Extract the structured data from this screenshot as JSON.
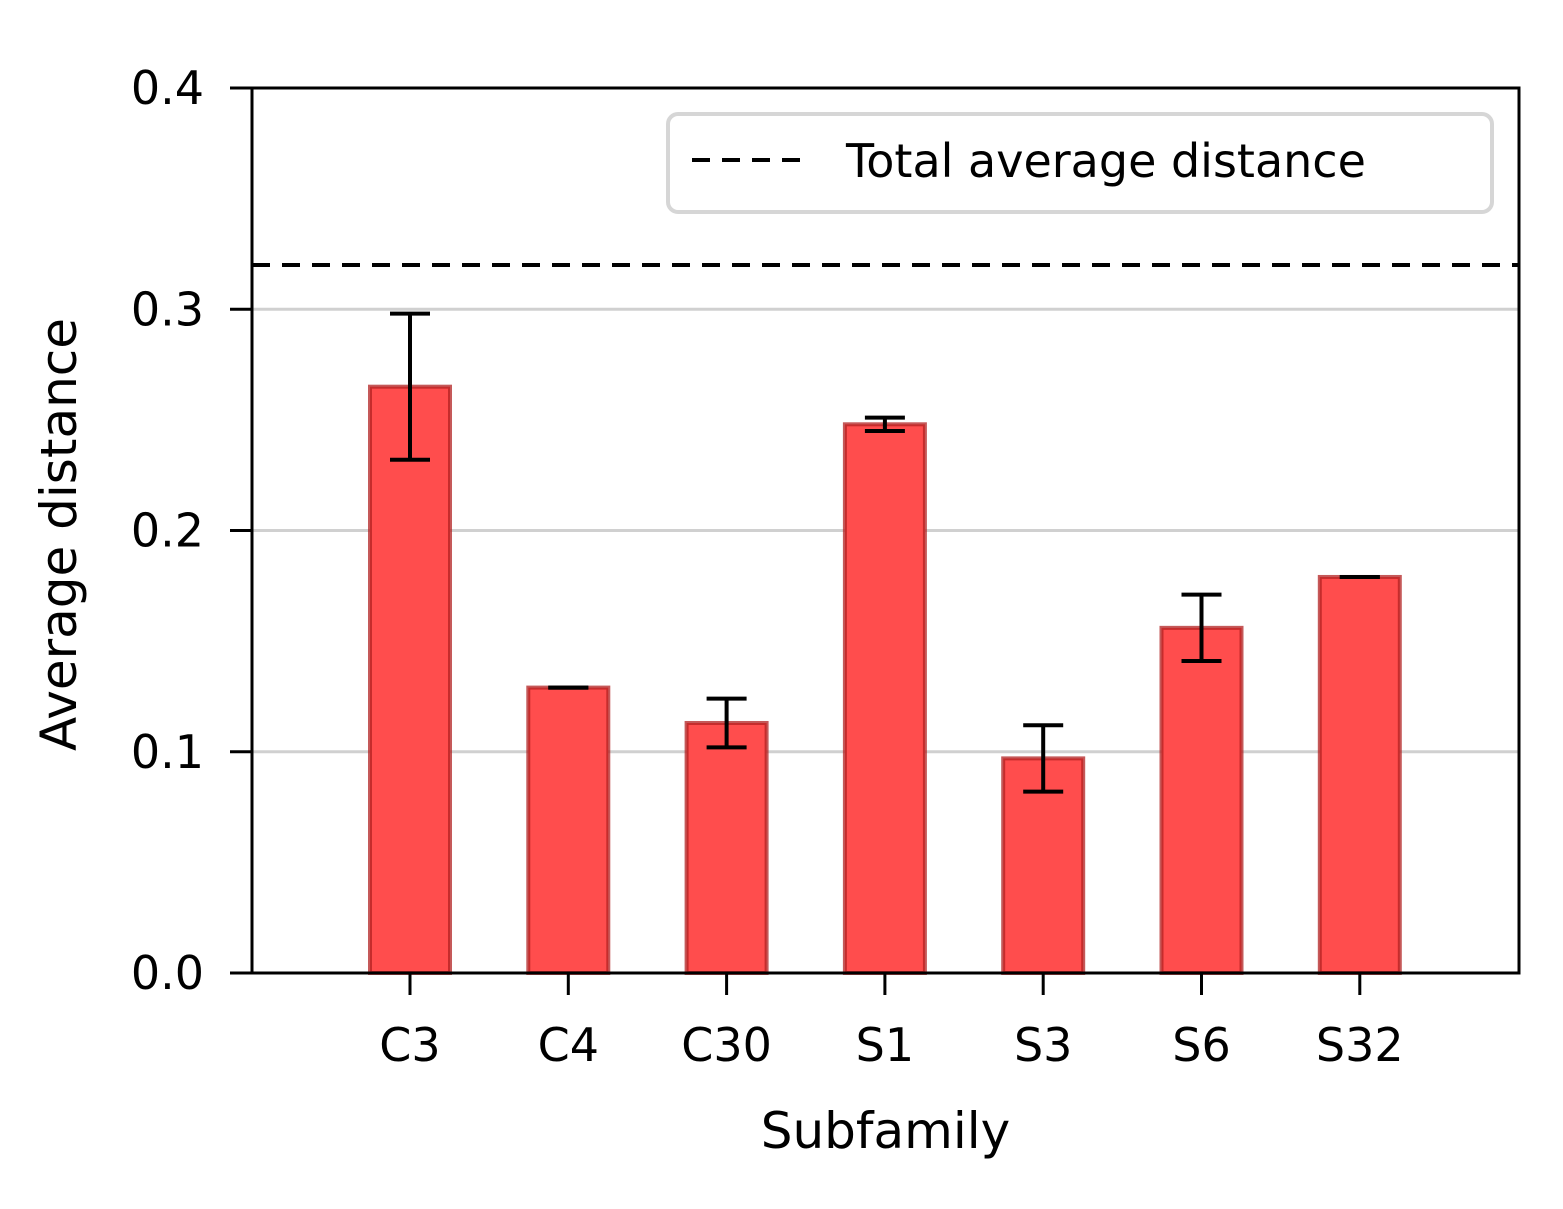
{
  "chart_data": {
    "type": "bar",
    "title": "",
    "xlabel": "Subfamily",
    "ylabel": "Average distance",
    "ylim": [
      0,
      0.4
    ],
    "yticks": [
      "0.0",
      "0.1",
      "0.2",
      "0.3",
      "0.4"
    ],
    "ytick_values": [
      0,
      0.1,
      0.2,
      0.3,
      0.4
    ],
    "categories": [
      "C3",
      "C4",
      "C30",
      "S1",
      "S3",
      "S6",
      "S32"
    ],
    "values": [
      0.265,
      0.129,
      0.113,
      0.248,
      0.097,
      0.156,
      0.179
    ],
    "errors": [
      0.033,
      0.0,
      0.011,
      0.003,
      0.015,
      0.015,
      0.0
    ],
    "reference_line": {
      "label": "Total average distance",
      "value": 0.32,
      "style": "dashed"
    },
    "grid": "horizontal",
    "legend": {
      "position": "top-right",
      "entries": [
        "Total average distance"
      ]
    },
    "colors": {
      "bar_fill": "#ff4d4d",
      "bar_edge": "#b22222",
      "grid": "#d0d0d0",
      "axis": "#000000"
    }
  }
}
